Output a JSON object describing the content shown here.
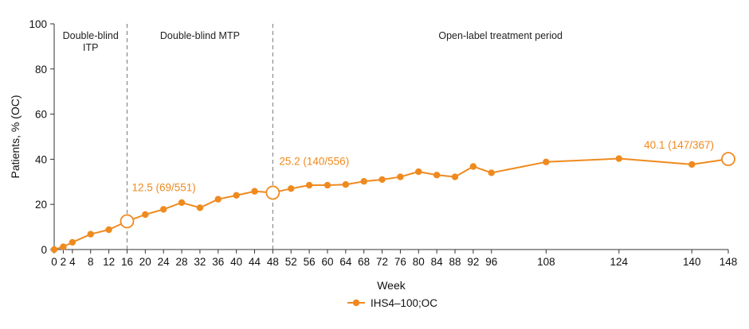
{
  "chart_data": {
    "type": "line",
    "title": "",
    "xlabel": "Week",
    "ylabel": "Patients, % (OC)",
    "ylim": [
      0,
      100
    ],
    "xlim": [
      0,
      148
    ],
    "yticks": [
      0,
      20,
      40,
      60,
      80,
      100
    ],
    "xticks": [
      0,
      2,
      4,
      8,
      12,
      16,
      20,
      24,
      28,
      32,
      36,
      40,
      44,
      48,
      52,
      56,
      60,
      64,
      68,
      72,
      76,
      80,
      84,
      88,
      92,
      96,
      108,
      124,
      140,
      148
    ],
    "grid": false,
    "legend_position": "bottom-center",
    "series": [
      {
        "name": "IHS4–100;OC",
        "color": "#EF8A1F",
        "x": [
          0,
          2,
          4,
          8,
          12,
          16,
          20,
          24,
          28,
          32,
          36,
          40,
          44,
          48,
          52,
          56,
          60,
          64,
          68,
          72,
          76,
          80,
          84,
          88,
          92,
          96,
          108,
          124,
          140,
          148
        ],
        "y": [
          0,
          1.2,
          3.2,
          6.8,
          8.8,
          12.5,
          15.5,
          17.8,
          20.8,
          18.5,
          22.3,
          24.0,
          25.8,
          25.2,
          27.0,
          28.5,
          28.5,
          28.8,
          30.2,
          31.0,
          32.2,
          34.5,
          33.0,
          32.2,
          36.8,
          34.0,
          38.8,
          40.3,
          37.7,
          40.1
        ],
        "highlight_x": [
          16,
          48,
          148
        ]
      }
    ],
    "period_dividers": [
      16,
      48
    ],
    "periods": [
      {
        "label_lines": [
          "Double-blind",
          "ITP"
        ]
      },
      {
        "label_lines": [
          "Double-blind MTP"
        ]
      },
      {
        "label_lines": [
          "Open-label treatment period"
        ]
      }
    ],
    "annotations": [
      {
        "text": "12.5 (69/551)",
        "x": 16,
        "y": 12.5
      },
      {
        "text": "25.2 (140/556)",
        "x": 48,
        "y": 25.2
      },
      {
        "text": "40.1 (147/367)",
        "x": 148,
        "y": 40.1
      }
    ]
  }
}
